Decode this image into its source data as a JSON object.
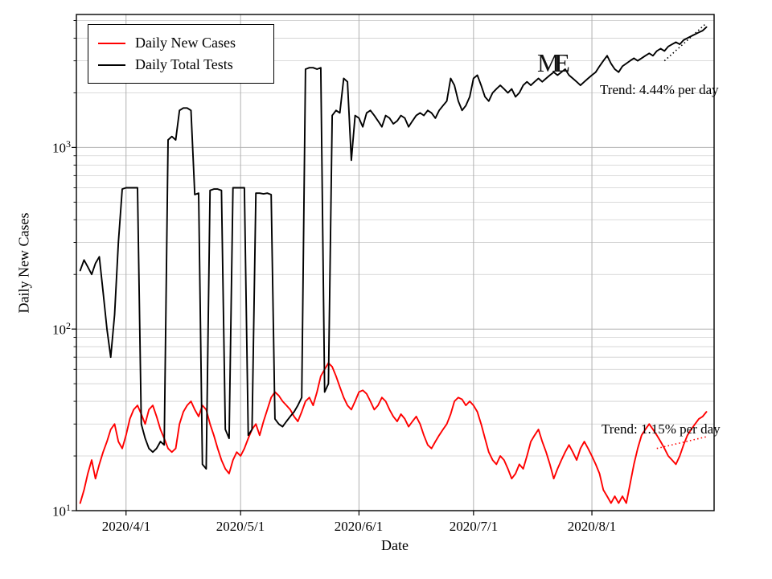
{
  "figure": {
    "region_label": "ME",
    "xlabel": "Date",
    "ylabel": "Daily New Cases",
    "legend_cases": "Daily New Cases",
    "legend_tests": "Daily Total Tests",
    "trend_tests_label": "Trend: 4.44% per day",
    "trend_cases_label": "Trend: 1.15% per day",
    "background_color": "#ffffff",
    "grid_color": "#b0b0b0"
  },
  "chart_data": {
    "type": "line",
    "title": "ME",
    "xlabel": "Date",
    "ylabel": "Daily New Cases",
    "y_scale": "log",
    "ylim": [
      10,
      5400
    ],
    "x_domain": [
      "2020-03-19",
      "2020-09-02"
    ],
    "x_ticks": [
      "2020/4/1",
      "2020/5/1",
      "2020/6/1",
      "2020/7/1",
      "2020/8/1"
    ],
    "y_ticks": [
      10,
      100,
      1000
    ],
    "grid": true,
    "legend_position": "upper left",
    "x": {
      "start_date": "2020-03-20",
      "step_days": 1,
      "count": 165
    },
    "series": [
      {
        "name": "Daily New Cases",
        "color": "#ff0000",
        "values": [
          11,
          13,
          16,
          19,
          15,
          18,
          21,
          24,
          28,
          30,
          24,
          22,
          26,
          32,
          36,
          38,
          34,
          30,
          36,
          38,
          33,
          28,
          25,
          22,
          21,
          22,
          30,
          35,
          38,
          40,
          36,
          33,
          38,
          36,
          30,
          26,
          22,
          19,
          17,
          16,
          19,
          21,
          20,
          22,
          25,
          28,
          30,
          26,
          31,
          36,
          42,
          45,
          43,
          40,
          38,
          36,
          33,
          31,
          35,
          40,
          42,
          38,
          45,
          55,
          60,
          65,
          62,
          55,
          48,
          42,
          38,
          36,
          40,
          45,
          46,
          44,
          40,
          36,
          38,
          42,
          40,
          36,
          33,
          31,
          34,
          32,
          29,
          31,
          33,
          30,
          26,
          23,
          22,
          24,
          26,
          28,
          30,
          34,
          40,
          42,
          41,
          38,
          40,
          38,
          35,
          30,
          25,
          21,
          19,
          18,
          20,
          19,
          17,
          15,
          16,
          18,
          17,
          20,
          24,
          26,
          28,
          24,
          21,
          18,
          15,
          17,
          19,
          21,
          23,
          21,
          19,
          22,
          24,
          22,
          20,
          18,
          16,
          13,
          12,
          11,
          12,
          11,
          12,
          11,
          14,
          18,
          22,
          26,
          28,
          30,
          28,
          26,
          24,
          22,
          20,
          19,
          18,
          20,
          23,
          26,
          28,
          30,
          32,
          33,
          35
        ]
      },
      {
        "name": "Daily Total Tests",
        "color": "#000000",
        "values": [
          210,
          240,
          220,
          200,
          230,
          250,
          160,
          100,
          70,
          120,
          300,
          590,
          600,
          600,
          600,
          600,
          30,
          25,
          22,
          21,
          22,
          24,
          23,
          1100,
          1150,
          1100,
          1600,
          1650,
          1650,
          1600,
          550,
          560,
          18,
          17,
          580,
          590,
          590,
          580,
          28,
          25,
          600,
          600,
          600,
          600,
          26,
          28,
          560,
          560,
          555,
          560,
          550,
          32,
          30,
          29,
          31,
          33,
          35,
          38,
          42,
          2700,
          2750,
          2750,
          2700,
          2750,
          45,
          50,
          1500,
          1600,
          1550,
          2400,
          2300,
          850,
          1500,
          1450,
          1300,
          1550,
          1600,
          1500,
          1400,
          1300,
          1500,
          1450,
          1350,
          1400,
          1500,
          1450,
          1300,
          1400,
          1500,
          1550,
          1500,
          1600,
          1550,
          1450,
          1600,
          1700,
          1800,
          2400,
          2200,
          1800,
          1600,
          1700,
          1900,
          2400,
          2500,
          2200,
          1900,
          1800,
          2000,
          2100,
          2200,
          2100,
          2000,
          2100,
          1900,
          2000,
          2200,
          2300,
          2200,
          2300,
          2400,
          2300,
          2400,
          2500,
          2600,
          2500,
          2600,
          2700,
          2500,
          2400,
          2300,
          2200,
          2300,
          2400,
          2500,
          2600,
          2800,
          3000,
          3200,
          2900,
          2700,
          2600,
          2800,
          2900,
          3000,
          3100,
          3000,
          3100,
          3200,
          3300,
          3200,
          3400,
          3500,
          3400,
          3600,
          3700,
          3800,
          3700,
          3900,
          4000,
          4100,
          4200,
          4300,
          4400,
          4600
        ]
      }
    ],
    "trends": [
      {
        "name": "tests-trend",
        "color": "#000000",
        "pct_per_day": 4.44,
        "start_date": "2020-08-20",
        "end_date": "2020-08-31",
        "start_value": 3000,
        "label": "Trend: 4.44% per day"
      },
      {
        "name": "cases-trend",
        "color": "#ff0000",
        "pct_per_day": 1.15,
        "start_date": "2020-08-18",
        "end_date": "2020-08-31",
        "start_value": 22,
        "label": "Trend: 1.15% per day"
      }
    ]
  }
}
